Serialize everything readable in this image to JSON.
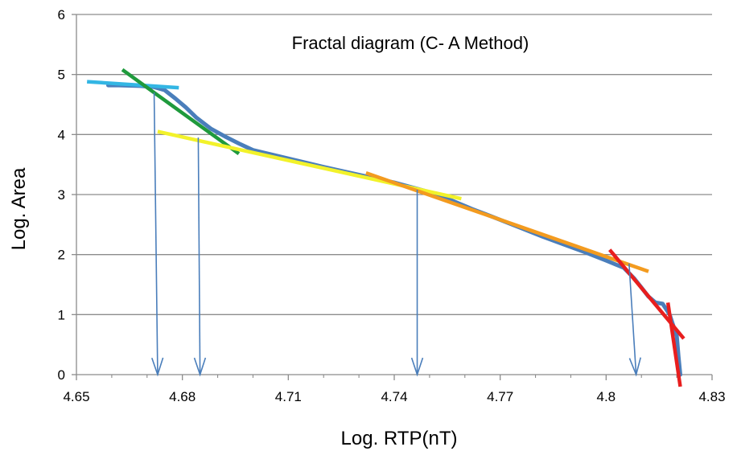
{
  "chart_data": {
    "type": "line",
    "title": "Fractal diagram (C- A Method)",
    "xlabel": "Log. RTP(nT)",
    "ylabel": "Log. Area",
    "xlim": [
      4.65,
      4.83
    ],
    "ylim": [
      0,
      6
    ],
    "x_ticks": [
      "4.65",
      "4.68",
      "4.71",
      "4.74",
      "4.77",
      "4.8",
      "4.83"
    ],
    "y_ticks": [
      "0",
      "1",
      "2",
      "3",
      "4",
      "5",
      "6"
    ],
    "grid": "horizontal",
    "legend": "none",
    "series": [
      {
        "color": "#4a7ebb",
        "x": [
          4.659,
          4.662,
          4.668,
          4.672,
          4.675,
          4.678,
          4.681,
          4.684,
          4.688,
          4.692,
          4.696,
          4.7,
          4.71,
          4.72,
          4.73,
          4.74,
          4.745,
          4.75,
          4.754,
          4.758,
          4.762,
          4.766,
          4.77,
          4.776,
          4.782,
          4.788,
          4.794,
          4.8,
          4.805,
          4.808,
          4.81,
          4.812,
          4.814,
          4.816,
          4.818,
          4.819,
          4.82,
          4.8205,
          4.821
        ],
        "y": [
          4.82,
          4.82,
          4.81,
          4.79,
          4.74,
          4.6,
          4.45,
          4.28,
          4.1,
          3.97,
          3.85,
          3.74,
          3.6,
          3.46,
          3.33,
          3.2,
          3.12,
          3.04,
          2.96,
          2.86,
          2.76,
          2.67,
          2.58,
          2.44,
          2.3,
          2.17,
          2.04,
          1.9,
          1.78,
          1.6,
          1.45,
          1.3,
          1.2,
          1.18,
          1.0,
          0.82,
          0.65,
          0.3,
          0.0
        ]
      }
    ],
    "fit_lines": [
      {
        "color": "#33b6e4",
        "x": [
          4.653,
          4.679
        ],
        "y": [
          4.88,
          4.78
        ]
      },
      {
        "color": "#1f9a3c",
        "x": [
          4.663,
          4.696
        ],
        "y": [
          5.08,
          3.68
        ]
      },
      {
        "color": "#f2f22a",
        "x": [
          4.673,
          4.759
        ],
        "y": [
          4.05,
          2.93
        ]
      },
      {
        "color": "#f39b1f",
        "x": [
          4.732,
          4.812
        ],
        "y": [
          3.36,
          1.72
        ]
      },
      {
        "color": "#e81e1e",
        "x": [
          4.801,
          4.822
        ],
        "y": [
          2.08,
          0.6
        ]
      },
      {
        "color": "#e81e1e",
        "x": [
          4.8175,
          4.821
        ],
        "y": [
          1.2,
          -0.2
        ]
      }
    ],
    "arrows": [
      {
        "color": "#4a7ebb",
        "x_from": 4.672,
        "y_from": 4.7,
        "x_to": 4.673,
        "y_to": 0.0
      },
      {
        "color": "#4a7ebb",
        "x_from": 4.6845,
        "y_from": 3.95,
        "x_to": 4.685,
        "y_to": 0.0
      },
      {
        "color": "#4a7ebb",
        "x_from": 4.7465,
        "y_from": 3.08,
        "x_to": 4.7465,
        "y_to": 0.0
      },
      {
        "color": "#4a7ebb",
        "x_from": 4.8065,
        "y_from": 1.85,
        "x_to": 4.8085,
        "y_to": 0.0
      }
    ]
  }
}
